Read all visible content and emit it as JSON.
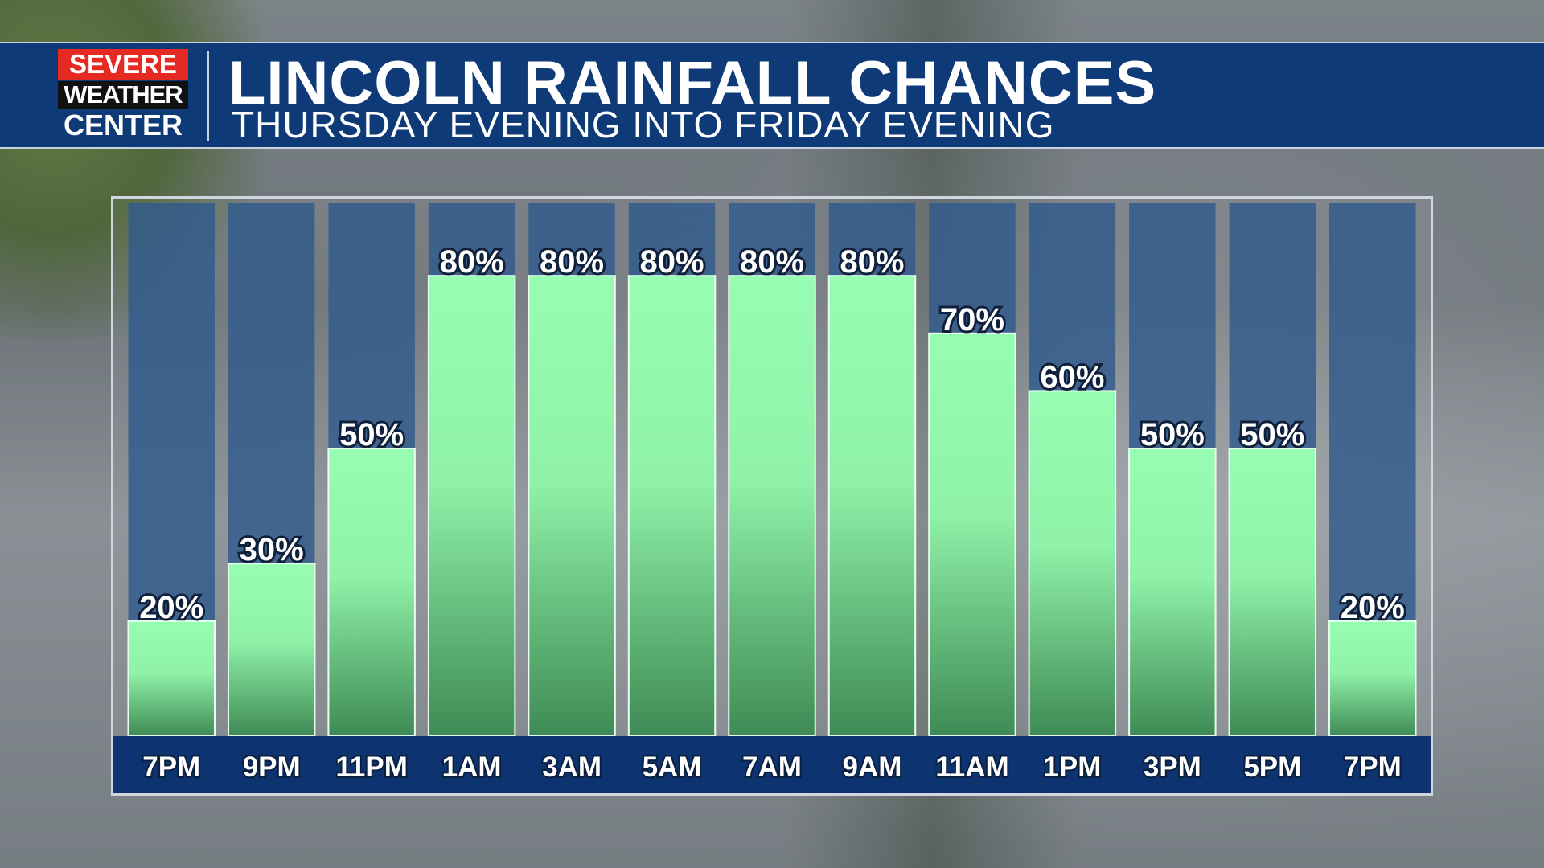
{
  "header": {
    "logo": {
      "line1": "SEVERE",
      "line2": "WEATHER",
      "line3": "CENTER"
    },
    "title": "LINCOLN RAINFALL CHANCES",
    "subtitle": "THURSDAY EVENING INTO FRIDAY EVENING"
  },
  "colors": {
    "header_bg": "#0e3a78",
    "column_bg": "#2f5a8c",
    "bar_top": "#95fcb0",
    "bar_bottom": "#4a8f5c",
    "logo_red": "#e42a22"
  },
  "chart_data": {
    "type": "bar",
    "title": "LINCOLN RAINFALL CHANCES",
    "subtitle": "THURSDAY EVENING INTO FRIDAY EVENING",
    "categories": [
      "7PM",
      "9PM",
      "11PM",
      "1AM",
      "3AM",
      "5AM",
      "7AM",
      "9AM",
      "11AM",
      "1PM",
      "3PM",
      "5PM",
      "7PM"
    ],
    "values": [
      20,
      30,
      50,
      80,
      80,
      80,
      80,
      80,
      70,
      60,
      50,
      50,
      20
    ],
    "data_labels": [
      "20%",
      "30%",
      "50%",
      "80%",
      "80%",
      "80%",
      "80%",
      "80%",
      "70%",
      "60%",
      "50%",
      "50%",
      "20%"
    ],
    "unit": "%",
    "ylim": [
      0,
      100
    ],
    "grid": false,
    "legend": "none"
  }
}
